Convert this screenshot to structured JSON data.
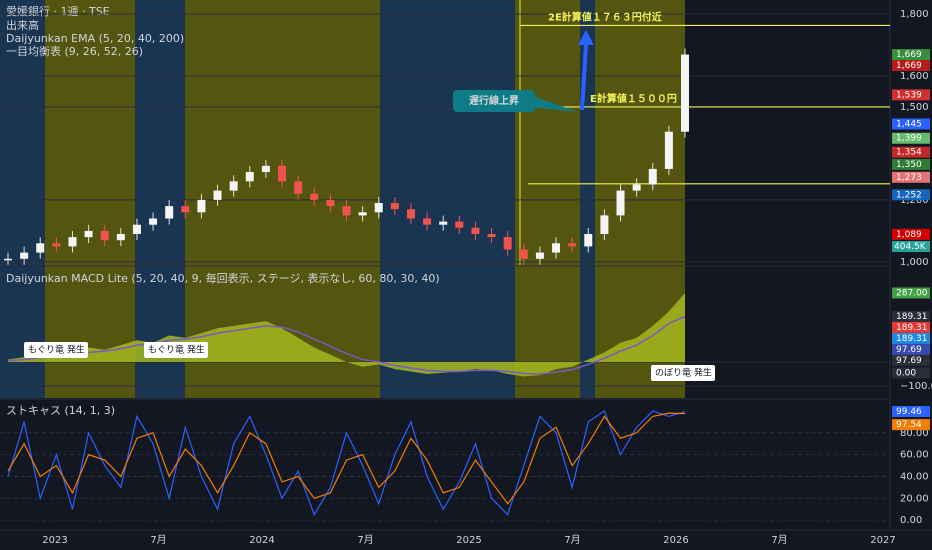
{
  "header": {
    "symbol": "愛媛銀行 · 1週 · TSE",
    "indicators": [
      "出来高",
      "Daijyunkan EMA (5, 20, 40, 200)",
      "一目均衡表 (9, 26, 52, 26)"
    ]
  },
  "main_pane": {
    "ylim": [
      990,
      1845
    ],
    "yticks": [
      {
        "value": 1800,
        "label": "1,800"
      },
      {
        "value": 1600,
        "label": "1,600"
      },
      {
        "value": 1500,
        "label": "1,500"
      },
      {
        "value": 1200,
        "label": "1,200"
      },
      {
        "value": 1000,
        "label": "1,000"
      }
    ],
    "closes": [
      1010,
      1030,
      1060,
      1050,
      1080,
      1100,
      1070,
      1090,
      1120,
      1140,
      1180,
      1160,
      1200,
      1230,
      1260,
      1290,
      1310,
      1260,
      1220,
      1200,
      1180,
      1150,
      1160,
      1190,
      1170,
      1140,
      1120,
      1130,
      1110,
      1090,
      1080,
      1040,
      1010,
      1030,
      1060,
      1050,
      1090,
      1150,
      1230,
      1250,
      1300,
      1420,
      1669
    ],
    "levels": [
      {
        "value": 1763,
        "label": "2E計算値１７６３円付近"
      },
      {
        "value": 1500,
        "label": "E計算値１５００円"
      },
      {
        "value": 1252
      }
    ],
    "callout": "遅行線上昇",
    "badges": [
      {
        "value": 1669,
        "label": "1,669",
        "color": "#388e3c"
      },
      {
        "value": 1669,
        "label": "1,669",
        "color": "#b71c1c"
      },
      {
        "value": 1539,
        "label": "1,539",
        "color": "#d32f2f"
      },
      {
        "value": 1445,
        "label": "1,445",
        "color": "#2962ff"
      },
      {
        "value": 1399,
        "label": "1,399",
        "color": "#66bb6a"
      },
      {
        "value": 1354,
        "label": "1,354",
        "color": "#c62828"
      },
      {
        "value": 1350,
        "label": "1,350",
        "color": "#2e7d32"
      },
      {
        "value": 1273,
        "label": "1,273",
        "color": "#e57373"
      },
      {
        "value": 1252,
        "label": "1,252",
        "color": "#1565c0"
      },
      {
        "value": 1089,
        "label": "1,089",
        "color": "#d50000"
      }
    ],
    "volume_badge": {
      "label": "404.5K",
      "color": "#26a69a"
    }
  },
  "macd_pane": {
    "title": "Daijyunkan MACD Lite (5, 20, 40, 9, 毎回表示, ステージ, 表示なし, 60, 80, 30, 40)",
    "ylim": [
      -150,
      395
    ],
    "yticks": [
      {
        "value": 0,
        "label": "0.00"
      },
      {
        "value": -100,
        "label": "−100.00"
      }
    ],
    "macd": [
      10,
      20,
      30,
      25,
      40,
      60,
      50,
      70,
      90,
      80,
      110,
      100,
      120,
      140,
      150,
      160,
      170,
      140,
      100,
      60,
      30,
      0,
      -20,
      -10,
      -30,
      -40,
      -50,
      -45,
      -40,
      -30,
      -35,
      -50,
      -60,
      -55,
      -30,
      -20,
      10,
      40,
      80,
      100,
      150,
      210,
      287
    ],
    "signal": [
      5,
      10,
      18,
      20,
      28,
      40,
      45,
      55,
      70,
      75,
      90,
      95,
      105,
      120,
      130,
      140,
      150,
      145,
      125,
      95,
      65,
      35,
      10,
      0,
      -15,
      -25,
      -35,
      -40,
      -40,
      -35,
      -35,
      -40,
      -48,
      -50,
      -42,
      -32,
      -10,
      15,
      45,
      70,
      110,
      160,
      189.31
    ],
    "notes": [
      "もぐり竜 発生",
      "もぐり竜 発生",
      "のぼり竜 発生"
    ],
    "badges": [
      {
        "value": 287,
        "label": "287.00",
        "color": "#43a047"
      },
      {
        "value": 189.31,
        "label": "189.31",
        "color": "#2a2e39"
      },
      {
        "value": 189.31,
        "label": "189.31",
        "color": "#e53935"
      },
      {
        "value": 189.31,
        "label": "189.31",
        "color": "#1e88e5"
      },
      {
        "value": 97.69,
        "label": "97.69",
        "color": "#3949ab"
      },
      {
        "value": 97.69,
        "label": "97.69",
        "color": "#2a2e39"
      },
      {
        "value": 0,
        "label": "0.00",
        "color": "#2a2e39"
      }
    ]
  },
  "stoch_pane": {
    "title": "ストキャス (14, 1, 3)",
    "ylim": [
      -9,
      110
    ],
    "yticks": [
      {
        "value": 80,
        "label": "80.00"
      },
      {
        "value": 60,
        "label": "60.00"
      },
      {
        "value": 40,
        "label": "40.00"
      },
      {
        "value": 20,
        "label": "20.00"
      },
      {
        "value": 0,
        "label": "0.00"
      }
    ],
    "k": [
      40,
      90,
      20,
      60,
      10,
      80,
      50,
      30,
      95,
      70,
      20,
      85,
      40,
      10,
      70,
      95,
      60,
      20,
      45,
      5,
      30,
      80,
      50,
      15,
      60,
      90,
      40,
      10,
      35,
      70,
      20,
      5,
      50,
      95,
      80,
      30,
      90,
      100,
      60,
      85,
      100,
      95,
      99.46
    ],
    "d": [
      45,
      70,
      40,
      50,
      25,
      60,
      55,
      40,
      75,
      80,
      40,
      65,
      50,
      25,
      50,
      80,
      70,
      35,
      40,
      20,
      25,
      55,
      60,
      30,
      45,
      75,
      55,
      25,
      30,
      55,
      35,
      15,
      35,
      75,
      85,
      50,
      70,
      95,
      75,
      80,
      95,
      98,
      97.54
    ],
    "badges": [
      {
        "value": 99.46,
        "label": "99.46",
        "color": "#2962ff"
      },
      {
        "value": 97.54,
        "label": "97.54",
        "color": "#f57c00"
      }
    ]
  },
  "x_axis": [
    "2023",
    "7月",
    "2024",
    "7月",
    "2025",
    "7月",
    "2026",
    "7月",
    "2027"
  ]
}
